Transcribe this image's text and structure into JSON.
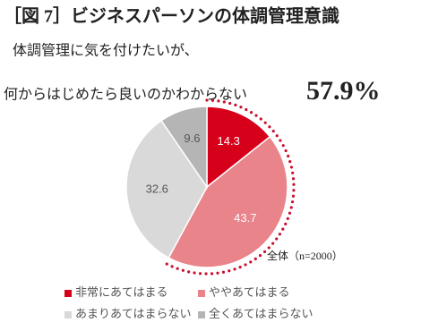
{
  "chart_data": {
    "type": "pie",
    "title": "［図 7］ビジネスパーソンの体調管理意識",
    "subtitle": [
      "体調管理に気を付けたいが、",
      "何からはじめたら良いのかわからない"
    ],
    "annotations": [
      "57.9%",
      "全体（n=2000）"
    ],
    "categories": [
      "非常にあてはまる",
      "ややあてはまる",
      "あまりあてはまらない",
      "全くあてはまらない"
    ],
    "values": [
      14.3,
      43.7,
      32.6,
      9.6
    ],
    "colors": [
      "#d7001a",
      "#e9848b",
      "#d9d9d9",
      "#b5b5b5"
    ],
    "label_colors": [
      "#ffffff",
      "#ffffff",
      "#555555",
      "#555555"
    ],
    "highlight_color": "#c8102e"
  }
}
